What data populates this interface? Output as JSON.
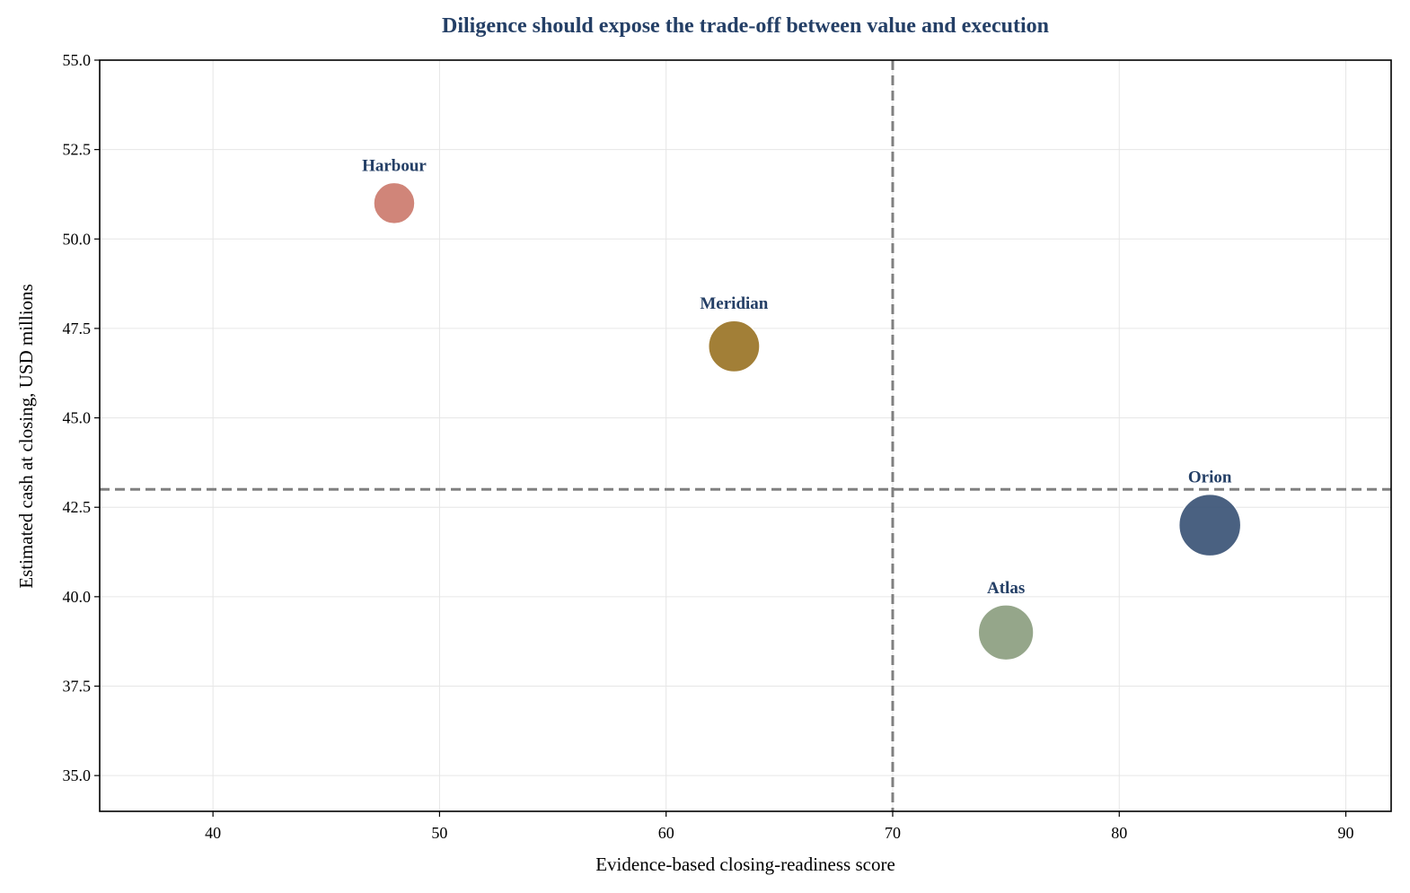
{
  "chart_data": {
    "type": "scatter",
    "title": "Diligence should expose the trade-off between value and execution",
    "xlabel": "Evidence-based closing-readiness score",
    "ylabel": "Estimated cash at closing, USD millions",
    "xlim": [
      35,
      92
    ],
    "ylim": [
      34,
      55
    ],
    "xticks": [
      40,
      50,
      60,
      70,
      80,
      90
    ],
    "yticks": [
      35.0,
      37.5,
      40.0,
      42.5,
      45.0,
      47.5,
      50.0,
      52.5,
      55.0
    ],
    "grid": true,
    "reference_lines": {
      "x": 70,
      "y": 43
    },
    "points": [
      {
        "label": "Harbour",
        "x": 48,
        "y": 51,
        "bubble_size": 1.0,
        "color": "#cc7b6e"
      },
      {
        "label": "Meridian",
        "x": 63,
        "y": 47,
        "bubble_size": 1.55,
        "color": "#9a7426"
      },
      {
        "label": "Atlas",
        "x": 75,
        "y": 39,
        "bubble_size": 1.8,
        "color": "#8c9e80"
      },
      {
        "label": "Orion",
        "x": 84,
        "y": 42,
        "bubble_size": 2.25,
        "color": "#3b5476"
      }
    ]
  },
  "colors": {
    "title": "#243f66",
    "point_label": "#243f66",
    "reference_line": "#808080",
    "grid": "#e6e6e6",
    "axis": "#000000"
  }
}
